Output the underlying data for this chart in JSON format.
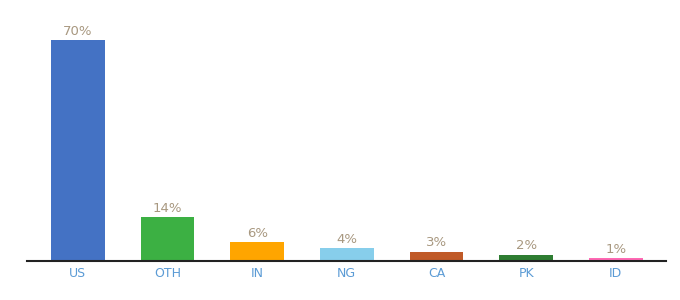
{
  "categories": [
    "US",
    "OTH",
    "IN",
    "NG",
    "CA",
    "PK",
    "ID"
  ],
  "values": [
    70,
    14,
    6,
    4,
    3,
    2,
    1
  ],
  "bar_colors": [
    "#4472C4",
    "#3CB043",
    "#FFA500",
    "#87CEEB",
    "#C05A28",
    "#2E7D32",
    "#FF69B4"
  ],
  "labels": [
    "70%",
    "14%",
    "6%",
    "4%",
    "3%",
    "2%",
    "1%"
  ],
  "label_color": "#A89880",
  "label_fontsize": 9.5,
  "tick_label_color": "#5B9BD5",
  "tick_fontsize": 9,
  "background_color": "#FFFFFF",
  "ylim": [
    0,
    78
  ],
  "bar_width": 0.6
}
